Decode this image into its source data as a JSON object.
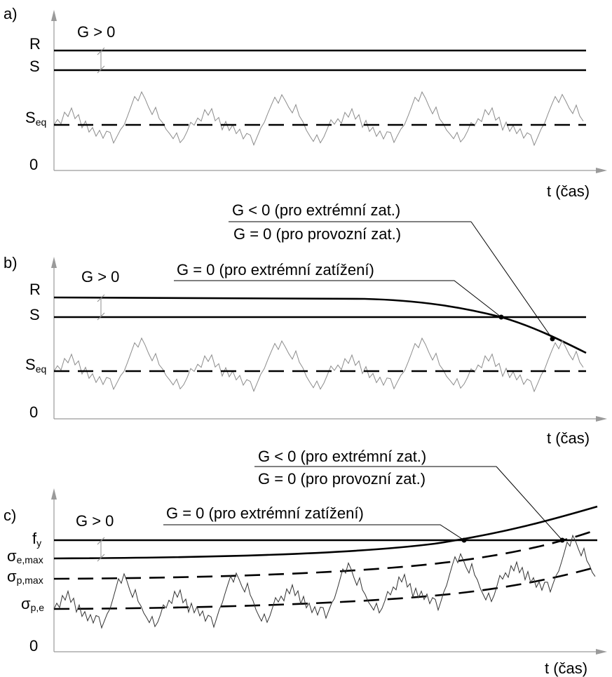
{
  "panels": {
    "a": {
      "tag": "a)",
      "labels": {
        "R": "R",
        "S": "S",
        "S_eq": "S",
        "S_eq_sub": "eq",
        "zero": "0",
        "time": "t (čas)"
      },
      "margin": "G > 0"
    },
    "b": {
      "tag": "b)",
      "labels": {
        "R": "R",
        "S": "S",
        "S_eq": "S",
        "S_eq_sub": "eq",
        "zero": "0",
        "time": "t (čas)"
      },
      "margin": "G > 0",
      "note_extreme": "G = 0 (pro extrémní zatížení)",
      "note_top": "G < 0 (pro extrémní zat.)",
      "note_bottom": "G = 0 (pro provozní zat.)"
    },
    "c": {
      "tag": "c)",
      "labels": {
        "fy": "f",
        "fy_sub": "y",
        "se_max": "σ",
        "se_max_sub": "e,max",
        "sp_max": "σ",
        "sp_max_sub": "p,max",
        "spe": "σ",
        "spe_sub": "p,e",
        "zero": "0",
        "time": "t (čas)"
      },
      "margin": "G > 0",
      "note_extreme": "G = 0 (pro extrémní zatížení)",
      "note_top": "G < 0 (pro extrémní zat.)",
      "note_bottom": "G = 0 (pro provozní zat.)"
    }
  }
}
